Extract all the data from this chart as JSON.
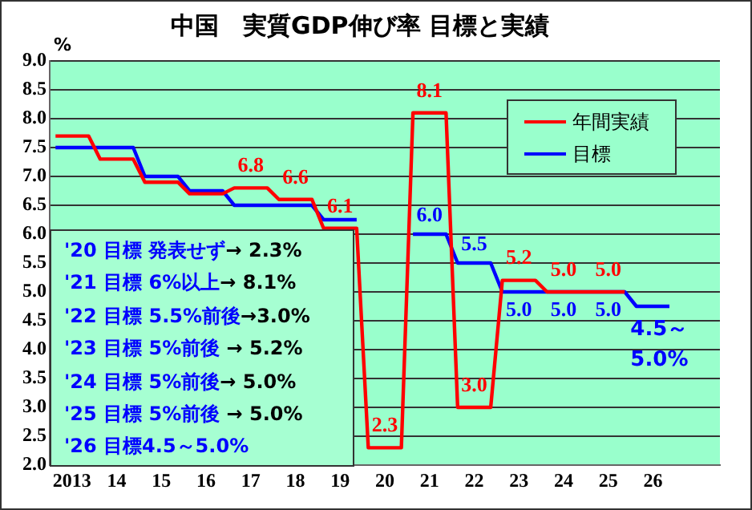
{
  "chart_data": {
    "type": "line",
    "title": "中国　実質GDP伸び率 目標と実績",
    "ylabel": "%",
    "x": [
      2012.63,
      2013.37,
      2013.63,
      2014.37,
      2014.63,
      2015.37,
      2015.63,
      2016.37,
      2016.63,
      2017.37,
      2017.63,
      2018.37,
      2018.63,
      2019.37,
      2019.63,
      2020.37,
      2020.63,
      2021.37,
      2021.63,
      2022.37,
      2022.63,
      2023.37,
      2023.63,
      2024.37,
      2024.63,
      2025.37,
      2025.63,
      2026.37
    ],
    "xlim": [
      2012.5,
      2027.5
    ],
    "xticks": [
      {
        "value": 2013,
        "label": "2013"
      },
      {
        "value": 2014,
        "label": "14"
      },
      {
        "value": 2015,
        "label": "15"
      },
      {
        "value": 2016,
        "label": "16"
      },
      {
        "value": 2017,
        "label": "17"
      },
      {
        "value": 2018,
        "label": "18"
      },
      {
        "value": 2019,
        "label": "19"
      },
      {
        "value": 2020,
        "label": "20"
      },
      {
        "value": 2021,
        "label": "21"
      },
      {
        "value": 2022,
        "label": "22"
      },
      {
        "value": 2023,
        "label": "23"
      },
      {
        "value": 2024,
        "label": "24"
      },
      {
        "value": 2025,
        "label": "25"
      },
      {
        "value": 2026,
        "label": "26"
      }
    ],
    "ylim": [
      2,
      9
    ],
    "yticks": [
      {
        "value": 2,
        "label": "2.0"
      },
      {
        "value": 2.5,
        "label": "2.5"
      },
      {
        "value": 3,
        "label": "3.0"
      },
      {
        "value": 3.5,
        "label": "3.5"
      },
      {
        "value": 4,
        "label": "4.0"
      },
      {
        "value": 4.5,
        "label": "4.5"
      },
      {
        "value": 5,
        "label": "5.0"
      },
      {
        "value": 5.5,
        "label": "5.5"
      },
      {
        "value": 6,
        "label": "6.0"
      },
      {
        "value": 6.5,
        "label": "6.5"
      },
      {
        "value": 7,
        "label": "7.0"
      },
      {
        "value": 7.5,
        "label": "7.5"
      },
      {
        "value": 8,
        "label": "8.0"
      },
      {
        "value": 8.5,
        "label": "8.5"
      },
      {
        "value": 9,
        "label": "9.0"
      }
    ],
    "series": [
      {
        "name": "年間実績",
        "color": "#ff0000",
        "values": [
          7.7,
          7.7,
          7.3,
          7.3,
          6.9,
          6.9,
          6.7,
          6.7,
          6.8,
          6.8,
          6.6,
          6.6,
          6.1,
          6.1,
          2.3,
          2.3,
          8.1,
          8.1,
          3.0,
          3.0,
          5.2,
          5.2,
          5.0,
          5.0,
          5.0,
          5.0,
          null,
          null
        ],
        "value_labels": [
          null,
          null,
          null,
          null,
          null,
          null,
          null,
          null,
          "6.8",
          null,
          "6.6",
          null,
          "6.1",
          null,
          "2.3",
          null,
          "8.1",
          null,
          "3.0",
          null,
          "5.2",
          null,
          "5.0",
          null,
          "5.0",
          null,
          null,
          null
        ]
      },
      {
        "name": "目標",
        "color": "#0000ff",
        "values": [
          7.5,
          7.5,
          7.5,
          7.5,
          7.0,
          7.0,
          6.75,
          6.75,
          6.5,
          6.5,
          6.5,
          6.5,
          6.25,
          6.25,
          null,
          null,
          6.0,
          6.0,
          5.5,
          5.5,
          5.0,
          5.0,
          5.0,
          5.0,
          5.0,
          5.0,
          4.75,
          4.75
        ],
        "value_labels": [
          null,
          null,
          null,
          null,
          null,
          null,
          null,
          null,
          null,
          null,
          null,
          null,
          null,
          null,
          null,
          null,
          "6.0",
          null,
          "5.5",
          null,
          "5.0",
          null,
          "5.0",
          null,
          "5.0",
          null,
          null,
          null
        ]
      }
    ],
    "legend": "top right",
    "grid": "y",
    "marker": "none",
    "line_style": "solid",
    "annotations": [
      "'20  目標 発表せず→ 2.3%",
      "'21  目標  6%以上→  8.1%",
      "'22  目標  5.5%前後→3.0%",
      "'23  目標  5%前後 →  5.2%",
      "'24  目標  5%前後→  5.0%",
      "'25 目標  5%前後  →  5.0%",
      "'26  目標4.5～5.0%",
      {
        "text": "4.5～5.0%",
        "x": 2026,
        "y": 4.75
      }
    ]
  }
}
